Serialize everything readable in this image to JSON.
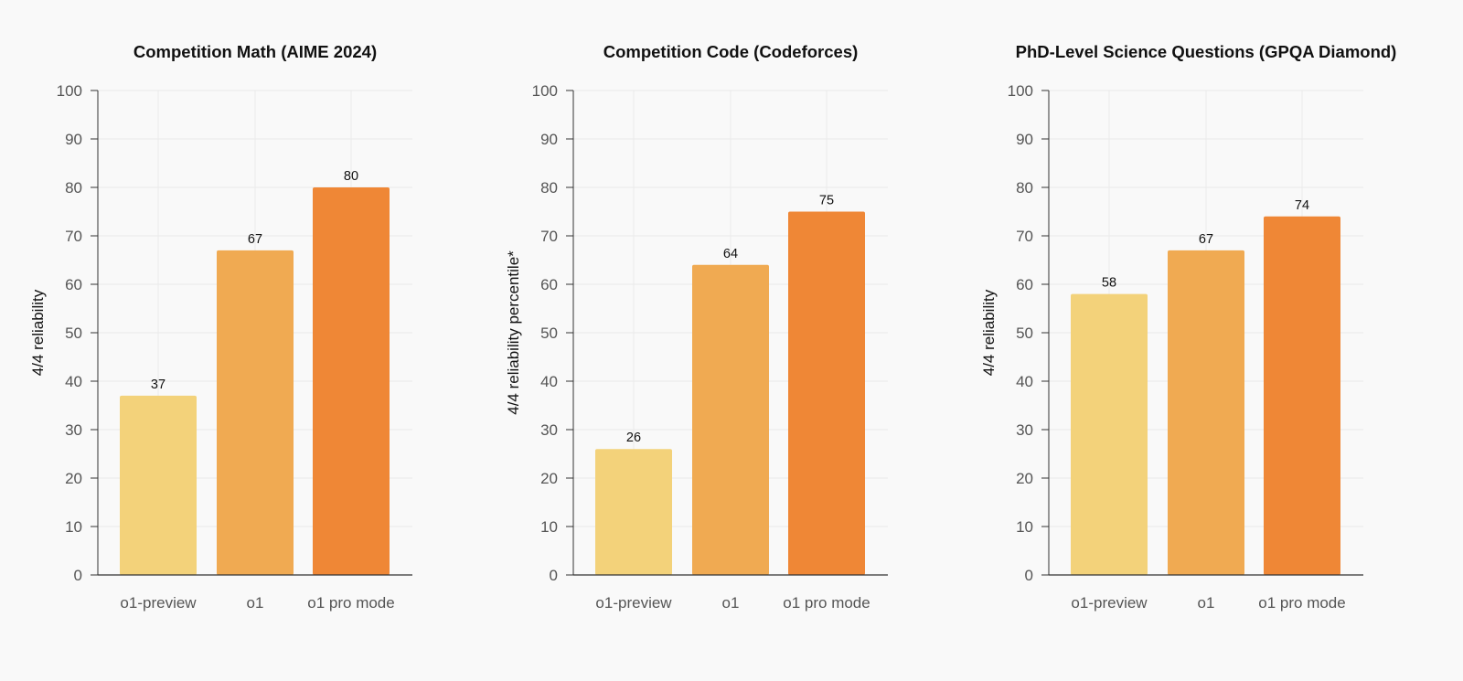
{
  "chart_data": [
    {
      "type": "bar",
      "title": "Competition Math (AIME 2024)",
      "xlabel": "",
      "ylabel": "4/4 reliability",
      "ylim": [
        0,
        100
      ],
      "yticks": [
        0,
        10,
        20,
        30,
        40,
        50,
        60,
        70,
        80,
        90,
        100
      ],
      "grid": true,
      "categories": [
        "o1-preview",
        "o1",
        "o1 pro mode"
      ],
      "values": [
        37,
        67,
        80
      ],
      "data_labels": [
        "37",
        "67",
        "80"
      ],
      "colors": [
        "#f3d27a",
        "#f0aa52",
        "#ef8736"
      ]
    },
    {
      "type": "bar",
      "title": "Competition Code (Codeforces)",
      "xlabel": "",
      "ylabel": "4/4 reliability percentile*",
      "ylim": [
        0,
        100
      ],
      "yticks": [
        0,
        10,
        20,
        30,
        40,
        50,
        60,
        70,
        80,
        90,
        100
      ],
      "grid": true,
      "categories": [
        "o1-preview",
        "o1",
        "o1 pro mode"
      ],
      "values": [
        26,
        64,
        75
      ],
      "data_labels": [
        "26",
        "64",
        "75"
      ],
      "colors": [
        "#f3d27a",
        "#f0aa52",
        "#ef8736"
      ]
    },
    {
      "type": "bar",
      "title": "PhD-Level Science Questions (GPQA Diamond)",
      "xlabel": "",
      "ylabel": "4/4 reliability",
      "ylim": [
        0,
        100
      ],
      "yticks": [
        0,
        10,
        20,
        30,
        40,
        50,
        60,
        70,
        80,
        90,
        100
      ],
      "grid": true,
      "categories": [
        "o1-preview",
        "o1",
        "o1 pro mode"
      ],
      "values": [
        58,
        67,
        74
      ],
      "data_labels": [
        "58",
        "67",
        "74"
      ],
      "colors": [
        "#f3d27a",
        "#f0aa52",
        "#ef8736"
      ]
    }
  ]
}
